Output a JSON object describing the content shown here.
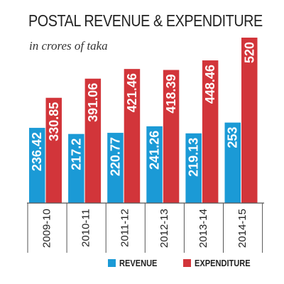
{
  "chart_data": {
    "type": "bar",
    "title": "POSTAL REVENUE & EXPENDITURE",
    "subtitle": "in crores of taka",
    "categories": [
      "2009-10",
      "2010-11",
      "2011-12",
      "2012-13",
      "2013-14",
      "2014-15"
    ],
    "series": [
      {
        "name": "REVENUE",
        "color": "#1b9ad6",
        "values": [
          236.42,
          217.2,
          220.77,
          241.26,
          219.13,
          253
        ]
      },
      {
        "name": "EXPENDITURE",
        "color": "#d2353a",
        "values": [
          330.85,
          391.06,
          421.46,
          418.39,
          448.46,
          520
        ]
      }
    ],
    "value_labels": {
      "REVENUE": [
        "236.42",
        "217.2",
        "220.77",
        "241.26",
        "219.13",
        "253"
      ],
      "EXPENDITURE": [
        "330.85",
        "391.06",
        "421.46",
        "418.39",
        "448.46",
        "520"
      ]
    },
    "ylim": [
      0,
      520
    ],
    "legend_position": "bottom-right",
    "grid": false,
    "xlabel": "",
    "ylabel": ""
  }
}
